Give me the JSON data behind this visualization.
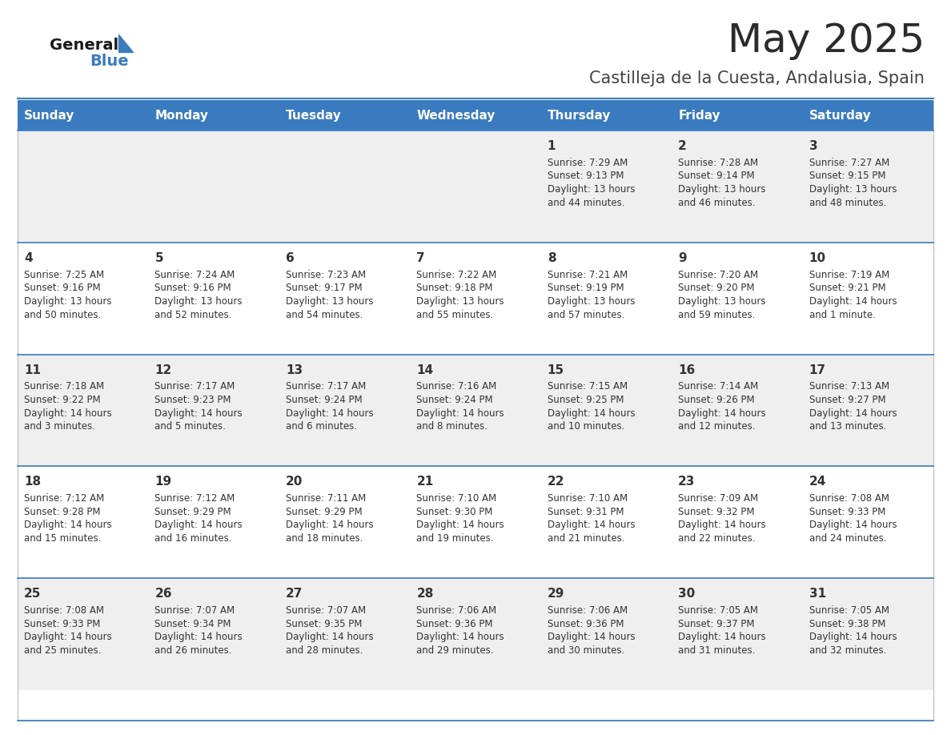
{
  "title": "May 2025",
  "subtitle": "Castilleja de la Cuesta, Andalusia, Spain",
  "days_of_week": [
    "Sunday",
    "Monday",
    "Tuesday",
    "Wednesday",
    "Thursday",
    "Friday",
    "Saturday"
  ],
  "header_bg": "#3a7bbf",
  "header_text": "#ffffff",
  "row_bg_odd": "#efefef",
  "row_bg_even": "#ffffff",
  "divider_color": "#3a7bbf",
  "text_color": "#333333",
  "title_color": "#2b2b2b",
  "subtitle_color": "#444444",
  "calendar_data": [
    [
      null,
      null,
      null,
      null,
      {
        "day": 1,
        "sunrise": "7:29 AM",
        "sunset": "9:13 PM",
        "daylight": "13 hours\nand 44 minutes."
      },
      {
        "day": 2,
        "sunrise": "7:28 AM",
        "sunset": "9:14 PM",
        "daylight": "13 hours\nand 46 minutes."
      },
      {
        "day": 3,
        "sunrise": "7:27 AM",
        "sunset": "9:15 PM",
        "daylight": "13 hours\nand 48 minutes."
      }
    ],
    [
      {
        "day": 4,
        "sunrise": "7:25 AM",
        "sunset": "9:16 PM",
        "daylight": "13 hours\nand 50 minutes."
      },
      {
        "day": 5,
        "sunrise": "7:24 AM",
        "sunset": "9:16 PM",
        "daylight": "13 hours\nand 52 minutes."
      },
      {
        "day": 6,
        "sunrise": "7:23 AM",
        "sunset": "9:17 PM",
        "daylight": "13 hours\nand 54 minutes."
      },
      {
        "day": 7,
        "sunrise": "7:22 AM",
        "sunset": "9:18 PM",
        "daylight": "13 hours\nand 55 minutes."
      },
      {
        "day": 8,
        "sunrise": "7:21 AM",
        "sunset": "9:19 PM",
        "daylight": "13 hours\nand 57 minutes."
      },
      {
        "day": 9,
        "sunrise": "7:20 AM",
        "sunset": "9:20 PM",
        "daylight": "13 hours\nand 59 minutes."
      },
      {
        "day": 10,
        "sunrise": "7:19 AM",
        "sunset": "9:21 PM",
        "daylight": "14 hours\nand 1 minute."
      }
    ],
    [
      {
        "day": 11,
        "sunrise": "7:18 AM",
        "sunset": "9:22 PM",
        "daylight": "14 hours\nand 3 minutes."
      },
      {
        "day": 12,
        "sunrise": "7:17 AM",
        "sunset": "9:23 PM",
        "daylight": "14 hours\nand 5 minutes."
      },
      {
        "day": 13,
        "sunrise": "7:17 AM",
        "sunset": "9:24 PM",
        "daylight": "14 hours\nand 6 minutes."
      },
      {
        "day": 14,
        "sunrise": "7:16 AM",
        "sunset": "9:24 PM",
        "daylight": "14 hours\nand 8 minutes."
      },
      {
        "day": 15,
        "sunrise": "7:15 AM",
        "sunset": "9:25 PM",
        "daylight": "14 hours\nand 10 minutes."
      },
      {
        "day": 16,
        "sunrise": "7:14 AM",
        "sunset": "9:26 PM",
        "daylight": "14 hours\nand 12 minutes."
      },
      {
        "day": 17,
        "sunrise": "7:13 AM",
        "sunset": "9:27 PM",
        "daylight": "14 hours\nand 13 minutes."
      }
    ],
    [
      {
        "day": 18,
        "sunrise": "7:12 AM",
        "sunset": "9:28 PM",
        "daylight": "14 hours\nand 15 minutes."
      },
      {
        "day": 19,
        "sunrise": "7:12 AM",
        "sunset": "9:29 PM",
        "daylight": "14 hours\nand 16 minutes."
      },
      {
        "day": 20,
        "sunrise": "7:11 AM",
        "sunset": "9:29 PM",
        "daylight": "14 hours\nand 18 minutes."
      },
      {
        "day": 21,
        "sunrise": "7:10 AM",
        "sunset": "9:30 PM",
        "daylight": "14 hours\nand 19 minutes."
      },
      {
        "day": 22,
        "sunrise": "7:10 AM",
        "sunset": "9:31 PM",
        "daylight": "14 hours\nand 21 minutes."
      },
      {
        "day": 23,
        "sunrise": "7:09 AM",
        "sunset": "9:32 PM",
        "daylight": "14 hours\nand 22 minutes."
      },
      {
        "day": 24,
        "sunrise": "7:08 AM",
        "sunset": "9:33 PM",
        "daylight": "14 hours\nand 24 minutes."
      }
    ],
    [
      {
        "day": 25,
        "sunrise": "7:08 AM",
        "sunset": "9:33 PM",
        "daylight": "14 hours\nand 25 minutes."
      },
      {
        "day": 26,
        "sunrise": "7:07 AM",
        "sunset": "9:34 PM",
        "daylight": "14 hours\nand 26 minutes."
      },
      {
        "day": 27,
        "sunrise": "7:07 AM",
        "sunset": "9:35 PM",
        "daylight": "14 hours\nand 28 minutes."
      },
      {
        "day": 28,
        "sunrise": "7:06 AM",
        "sunset": "9:36 PM",
        "daylight": "14 hours\nand 29 minutes."
      },
      {
        "day": 29,
        "sunrise": "7:06 AM",
        "sunset": "9:36 PM",
        "daylight": "14 hours\nand 30 minutes."
      },
      {
        "day": 30,
        "sunrise": "7:05 AM",
        "sunset": "9:37 PM",
        "daylight": "14 hours\nand 31 minutes."
      },
      {
        "day": 31,
        "sunrise": "7:05 AM",
        "sunset": "9:38 PM",
        "daylight": "14 hours\nand 32 minutes."
      }
    ]
  ]
}
